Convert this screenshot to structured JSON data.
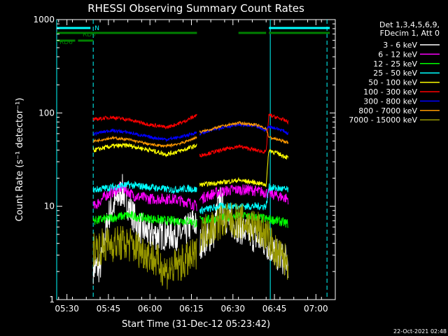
{
  "chart_data": {
    "type": "line",
    "title": "RHESSI Observing Summary Count Rates",
    "xlabel": "Start Time (31-Dec-12 05:23:42)",
    "ylabel": "Count Rate (s⁻¹ detector⁻¹)",
    "ylim": [
      1,
      1000
    ],
    "yscale": "log",
    "xlim_minutes": [
      -3.7,
      97
    ],
    "x_tick_labels": [
      "05:30",
      "05:45",
      "06:00",
      "06:15",
      "06:30",
      "06:45",
      "07:00"
    ],
    "x_tick_minutes": [
      0,
      15,
      30,
      45,
      60,
      75,
      90
    ],
    "y_tick_labels": [
      "1",
      "10",
      "100",
      "1000"
    ],
    "y_tick_values": [
      1,
      10,
      100,
      1000
    ],
    "legend_header": [
      "Det 1,3,4,5,6,9,",
      "FDecim 1, Att 0"
    ],
    "legend_position": "right",
    "footer_date": "22-Oct-2021 02:48",
    "data_window_minutes": [
      9.5,
      80
    ],
    "gap_minutes": [
      47,
      48
    ],
    "series": [
      {
        "name": "3 - 6 keV",
        "color": "#ffffff",
        "anchors": [
          [
            12,
            2.2
          ],
          [
            15,
            8
          ],
          [
            20,
            15
          ],
          [
            23,
            9
          ],
          [
            26,
            6
          ],
          [
            30,
            5
          ],
          [
            36,
            5
          ],
          [
            42,
            5
          ],
          [
            46,
            7
          ],
          [
            48,
            4
          ],
          [
            53,
            5
          ],
          [
            55,
            12
          ],
          [
            58,
            7
          ],
          [
            62,
            6
          ],
          [
            66,
            5
          ],
          [
            72,
            4
          ],
          [
            76,
            3
          ],
          [
            80,
            2.5
          ]
        ],
        "noise": 0.35
      },
      {
        "name": "6 - 12 keV",
        "color": "#ff00ff",
        "anchors": [
          [
            10,
            10
          ],
          [
            14,
            13
          ],
          [
            20,
            16
          ],
          [
            24,
            13
          ],
          [
            30,
            12
          ],
          [
            38,
            12
          ],
          [
            44,
            11
          ],
          [
            47,
            10
          ],
          [
            48,
            12
          ],
          [
            54,
            14
          ],
          [
            60,
            15
          ],
          [
            66,
            15
          ],
          [
            72,
            14
          ],
          [
            76,
            13
          ],
          [
            80,
            12
          ]
        ],
        "noise": 0.12
      },
      {
        "name": "12 - 25 keV",
        "color": "#00ff00",
        "anchors": [
          [
            10,
            7
          ],
          [
            16,
            7.5
          ],
          [
            22,
            8
          ],
          [
            28,
            7.5
          ],
          [
            36,
            7
          ],
          [
            44,
            7
          ],
          [
            47,
            6.5
          ],
          [
            48,
            7
          ],
          [
            56,
            7.5
          ],
          [
            64,
            8
          ],
          [
            70,
            7.5
          ],
          [
            76,
            7
          ],
          [
            80,
            6.5
          ]
        ],
        "noise": 0.1
      },
      {
        "name": "25 - 50 keV",
        "color": "#00ffff",
        "anchors": [
          [
            10,
            15
          ],
          [
            16,
            16
          ],
          [
            22,
            17
          ],
          [
            30,
            16
          ],
          [
            38,
            15
          ],
          [
            44,
            15.5
          ],
          [
            47,
            15
          ],
          [
            48,
            9
          ],
          [
            56,
            10
          ],
          [
            62,
            10
          ],
          [
            68,
            10
          ],
          [
            72,
            10
          ],
          [
            73,
            16
          ],
          [
            80,
            15
          ]
        ],
        "noise": 0.08
      },
      {
        "name": "50 - 100 keV",
        "color": "#ffff00",
        "anchors": [
          [
            10,
            40
          ],
          [
            16,
            44
          ],
          [
            22,
            45
          ],
          [
            30,
            40
          ],
          [
            36,
            36
          ],
          [
            42,
            40
          ],
          [
            47,
            45
          ],
          [
            48,
            17
          ],
          [
            56,
            18
          ],
          [
            62,
            19
          ],
          [
            68,
            18
          ],
          [
            72,
            17
          ],
          [
            73,
            40
          ],
          [
            78,
            35
          ],
          [
            80,
            33
          ]
        ],
        "noise": 0.05
      },
      {
        "name": "100 - 300 keV",
        "color": "#ff0000",
        "anchors": [
          [
            10,
            85
          ],
          [
            16,
            90
          ],
          [
            22,
            85
          ],
          [
            30,
            75
          ],
          [
            36,
            70
          ],
          [
            42,
            80
          ],
          [
            47,
            95
          ],
          [
            48,
            35
          ],
          [
            56,
            40
          ],
          [
            62,
            44
          ],
          [
            68,
            40
          ],
          [
            72,
            38
          ],
          [
            73,
            95
          ],
          [
            78,
            85
          ],
          [
            80,
            80
          ]
        ],
        "noise": 0.04
      },
      {
        "name": "300 - 800 keV",
        "color": "#0000ff",
        "anchors": [
          [
            10,
            60
          ],
          [
            16,
            65
          ],
          [
            22,
            62
          ],
          [
            30,
            55
          ],
          [
            36,
            52
          ],
          [
            42,
            56
          ],
          [
            47,
            62
          ],
          [
            48,
            60
          ],
          [
            56,
            70
          ],
          [
            62,
            75
          ],
          [
            68,
            72
          ],
          [
            72,
            65
          ],
          [
            73,
            72
          ],
          [
            78,
            65
          ],
          [
            80,
            60
          ]
        ],
        "noise": 0.035
      },
      {
        "name": "800 - 7000 keV",
        "color": "#ff9900",
        "anchors": [
          [
            10,
            50
          ],
          [
            16,
            54
          ],
          [
            22,
            52
          ],
          [
            30,
            46
          ],
          [
            36,
            44
          ],
          [
            42,
            48
          ],
          [
            47,
            55
          ],
          [
            48,
            62
          ],
          [
            56,
            72
          ],
          [
            62,
            78
          ],
          [
            68,
            75
          ],
          [
            72,
            68
          ],
          [
            73,
            55
          ],
          [
            78,
            50
          ],
          [
            80,
            48
          ]
        ],
        "noise": 0.03
      },
      {
        "name": "7000 - 15000 keV",
        "color": "#999900",
        "anchors": [
          [
            10,
            3.5
          ],
          [
            16,
            4
          ],
          [
            22,
            4
          ],
          [
            30,
            3
          ],
          [
            36,
            2
          ],
          [
            42,
            2.5
          ],
          [
            47,
            3
          ],
          [
            48,
            5
          ],
          [
            56,
            7
          ],
          [
            62,
            7
          ],
          [
            68,
            6
          ],
          [
            72,
            5
          ],
          [
            76,
            3
          ],
          [
            80,
            2.5
          ]
        ],
        "noise": 0.4
      }
    ],
    "bars": [
      {
        "label": "N",
        "color": "#00ffff",
        "row": 1,
        "segments": [
          [
            -3.7,
            8.5
          ],
          [
            73,
            95
          ]
        ]
      },
      {
        "label": "RD0",
        "color": "#008000",
        "row": 2,
        "segments": [
          [
            -3.7,
            47
          ],
          [
            62,
            72
          ],
          [
            73,
            95
          ]
        ]
      },
      {
        "label": "RD6",
        "color": "#008000",
        "row": 3,
        "segments": [
          [
            -3.7,
            3
          ],
          [
            4,
            9.5
          ]
        ]
      }
    ],
    "night_lines_solid": [
      -3.7,
      73.5
    ],
    "night_lines_dashed": [
      9.5,
      94
    ]
  }
}
